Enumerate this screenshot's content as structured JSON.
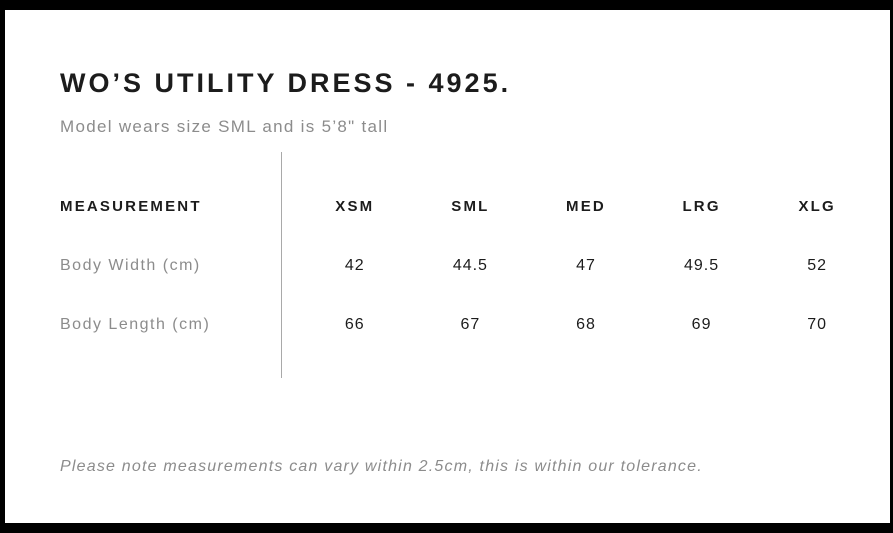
{
  "header": {
    "title": "WO’S UTILITY DRESS - 4925.",
    "subtitle": "Model wears size SML and is 5’8\" tall"
  },
  "size_chart": {
    "measurement_header": "MEASUREMENT",
    "columns": [
      "XSM",
      "SML",
      "MED",
      "LRG",
      "XLG"
    ],
    "rows": [
      {
        "label": "Body Width (cm)",
        "values": [
          "42",
          "44.5",
          "47",
          "49.5",
          "52"
        ]
      },
      {
        "label": "Body Length (cm)",
        "values": [
          "66",
          "67",
          "68",
          "69",
          "70"
        ]
      }
    ]
  },
  "footnote": "Please note measurements can vary within 2.5cm, this is within our tolerance.",
  "colors": {
    "text_primary": "#1c1c1c",
    "text_secondary": "#8c8c8c",
    "divider": "#a9a9a9",
    "frame": "#000000",
    "page_bg": "#ffffff"
  }
}
